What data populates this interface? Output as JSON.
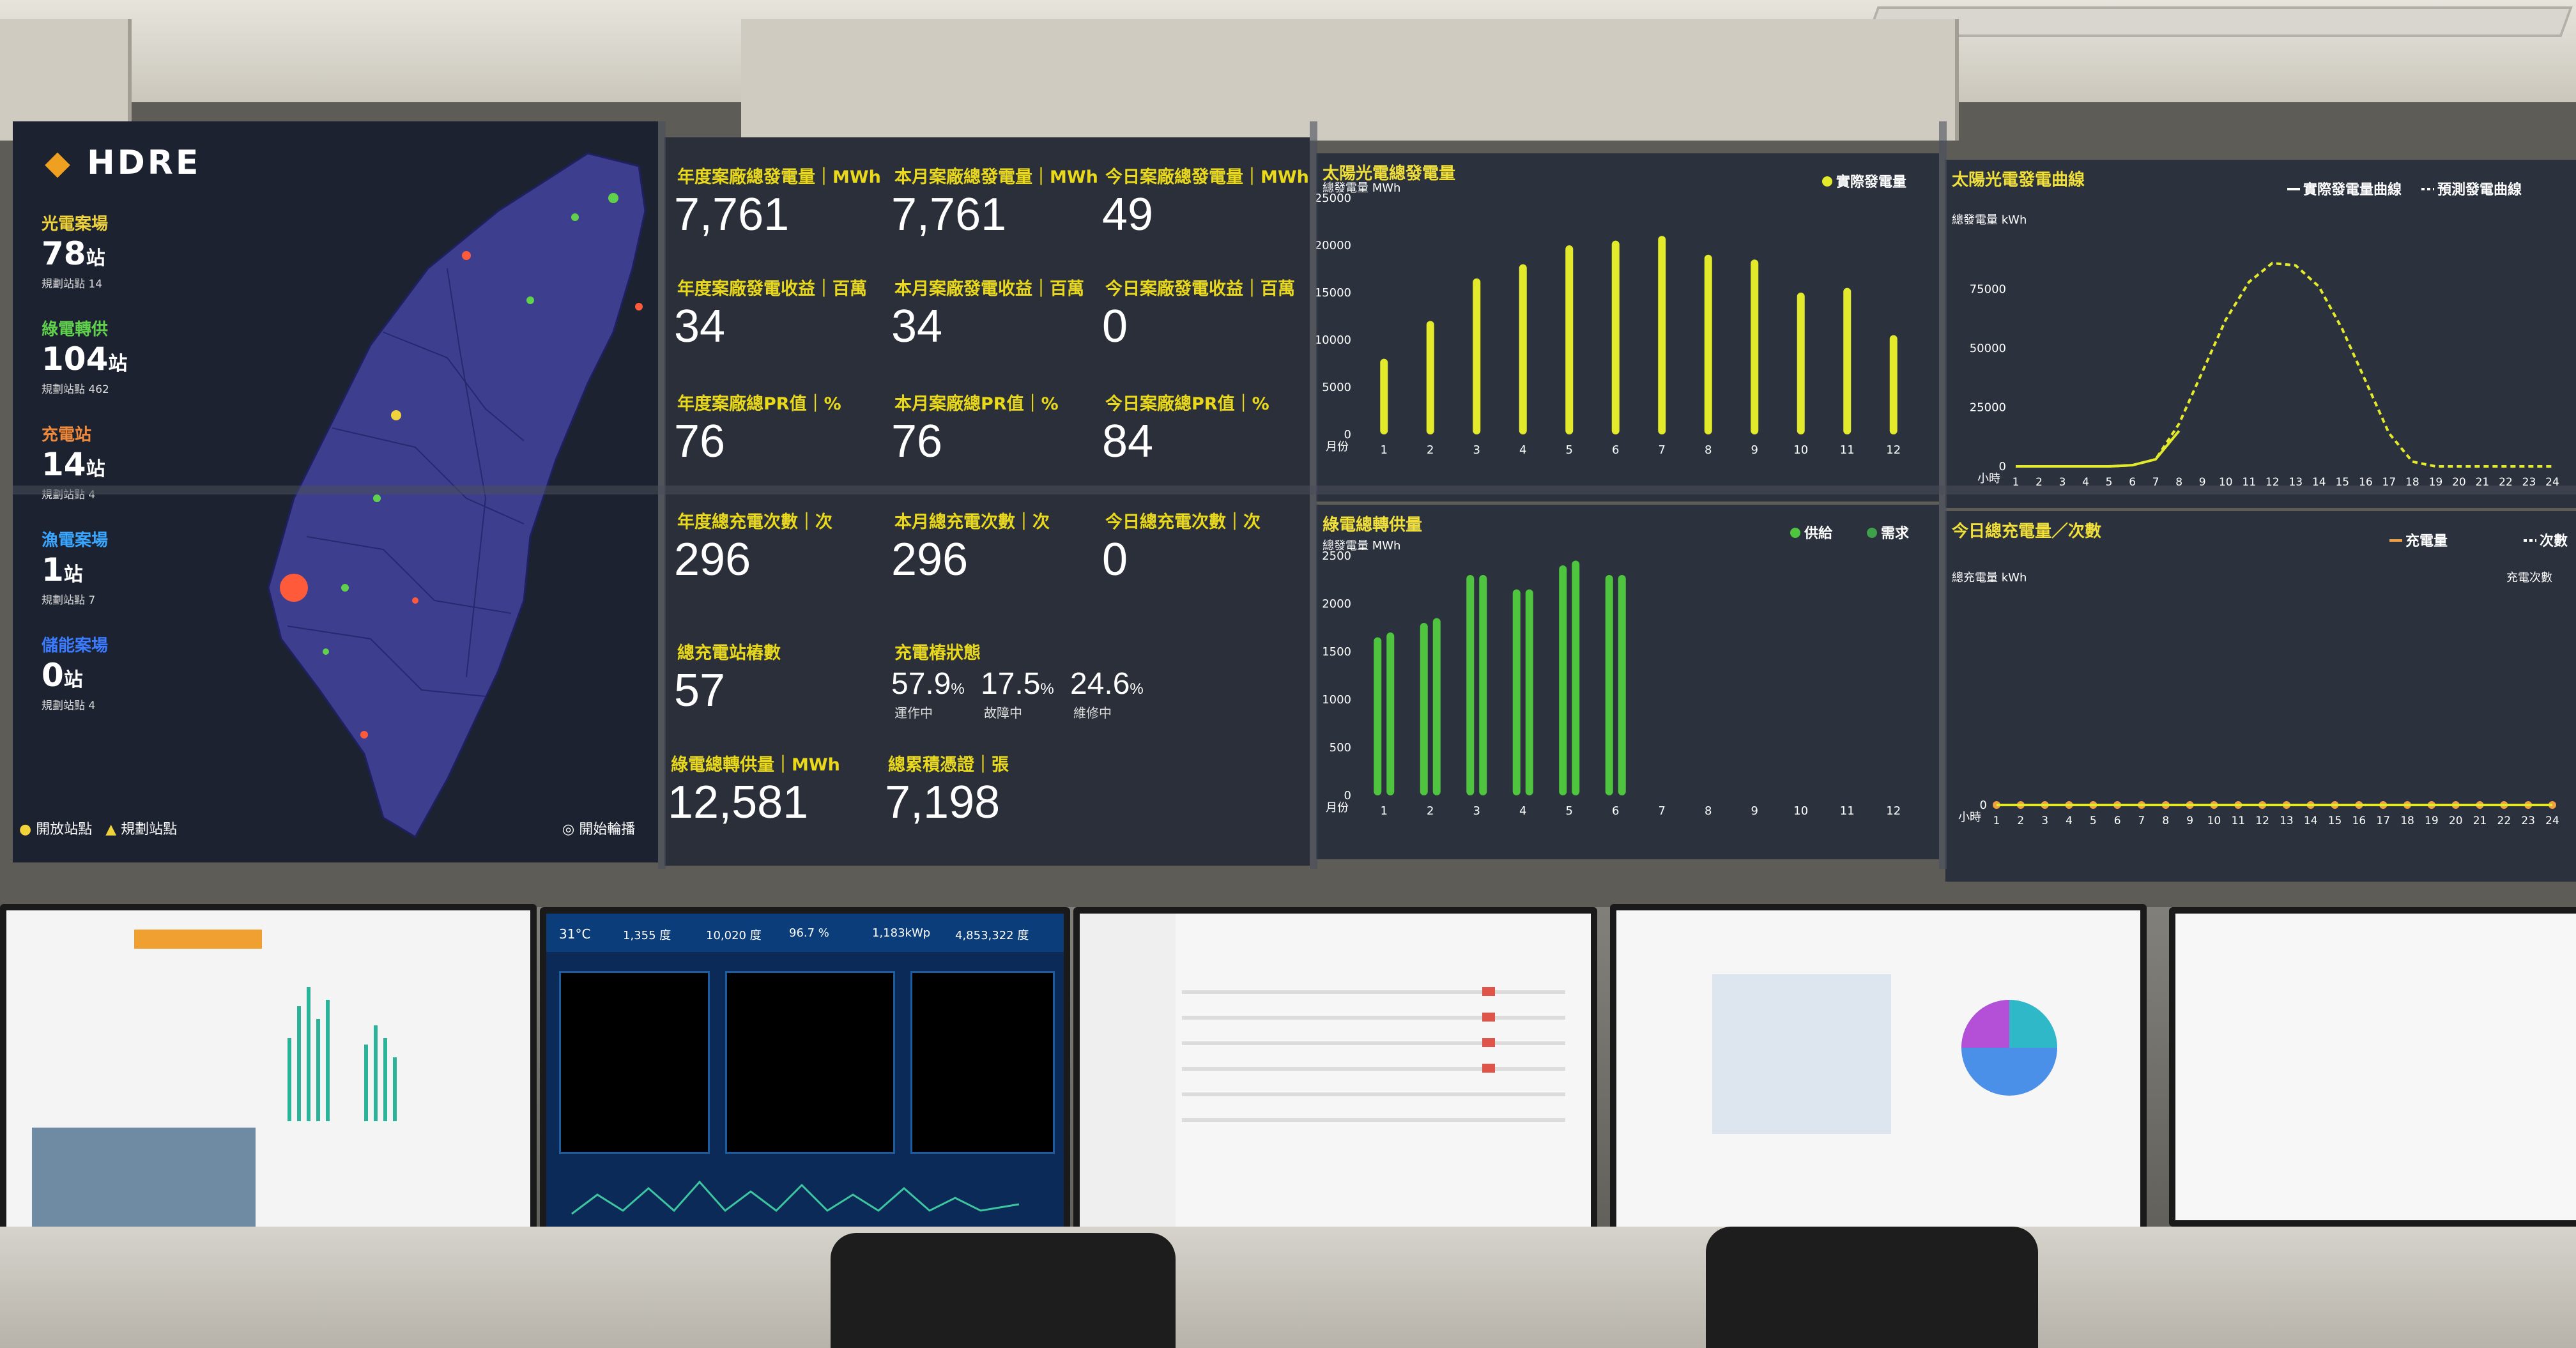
{
  "map": {
    "logo": "HDRE",
    "categories": [
      {
        "label": "光電案場",
        "count": "78",
        "unit": "站",
        "sub": "規劃站點 14",
        "color": "#f0d23a"
      },
      {
        "label": "綠電轉供",
        "count": "104",
        "unit": "站",
        "sub": "規劃站點 462",
        "color": "#5fd14c"
      },
      {
        "label": "充電站",
        "count": "14",
        "unit": "站",
        "sub": "規劃站點 4",
        "color": "#f08a3a"
      },
      {
        "label": "漁電案場",
        "count": "1",
        "unit": "站",
        "sub": "規劃站點 7",
        "color": "#39a7ff"
      },
      {
        "label": "儲能案場",
        "count": "0",
        "unit": "站",
        "sub": "規劃站點 4",
        "color": "#3b7bff"
      }
    ],
    "legend_open": "開放站點",
    "legend_plan": "規劃站點",
    "legend_rotate": "開始輪播"
  },
  "kpi": {
    "rows": [
      [
        {
          "label": "年度案廠總發電量｜MWh",
          "value": "7,761"
        },
        {
          "label": "本月案廠總發電量｜MWh",
          "value": "7,761"
        },
        {
          "label": "今日案廠總發電量｜MWh",
          "value": "49"
        }
      ],
      [
        {
          "label": "年度案廠發電收益｜百萬",
          "value": "34"
        },
        {
          "label": "本月案廠發電收益｜百萬",
          "value": "34"
        },
        {
          "label": "今日案廠發電收益｜百萬",
          "value": "0"
        }
      ],
      [
        {
          "label": "年度案廠總PR值｜%",
          "value": "76"
        },
        {
          "label": "本月案廠總PR值｜%",
          "value": "76"
        },
        {
          "label": "今日案廠總PR值｜%",
          "value": "84"
        }
      ],
      [
        {
          "label": "年度總充電次數｜次",
          "value": "296"
        },
        {
          "label": "本月總充電次數｜次",
          "value": "296"
        },
        {
          "label": "今日總充電次數｜次",
          "value": "0"
        }
      ]
    ],
    "pile_count_label": "總充電站樁數",
    "pile_count_value": "57",
    "pile_status_label": "充電樁狀態",
    "pile_status": [
      {
        "value": "57.9",
        "unit": "%",
        "label": "運作中"
      },
      {
        "value": "17.5",
        "unit": "%",
        "label": "故障中"
      },
      {
        "value": "24.6",
        "unit": "%",
        "label": "維修中"
      }
    ],
    "green_supply_label": "綠電總轉供量｜MWh",
    "green_supply_value": "12,581",
    "cert_label": "總累積憑證｜張",
    "cert_value": "7,198"
  },
  "chart_data": [
    {
      "type": "bar",
      "title": "太陽光電總發電量",
      "ylabel": "總發電量 MWh",
      "xlabel": "月份",
      "categories": [
        "1",
        "2",
        "3",
        "4",
        "5",
        "6",
        "7",
        "8",
        "9",
        "10",
        "11",
        "12"
      ],
      "series": [
        {
          "name": "實際發電量",
          "values": [
            8000,
            12000,
            16500,
            18000,
            20000,
            20500,
            21000,
            19000,
            18500,
            15000,
            15500,
            10500
          ]
        }
      ],
      "ylim": [
        0,
        25000
      ],
      "yticks": [
        "25000",
        "20000",
        "15000",
        "10000",
        "5000",
        "0"
      ],
      "color": "#e3ea2c"
    },
    {
      "type": "line",
      "title": "太陽光電發電曲線",
      "ylabel": "總發電量 kWh",
      "xlabel": "小時",
      "x": [
        "1",
        "2",
        "3",
        "4",
        "5",
        "6",
        "7",
        "8",
        "9",
        "10",
        "11",
        "12",
        "13",
        "14",
        "15",
        "16",
        "17",
        "18",
        "19",
        "20",
        "21",
        "22",
        "23",
        "24"
      ],
      "series": [
        {
          "name": "實際發電量曲線",
          "values": [
            0,
            0,
            0,
            0,
            0,
            500,
            3000,
            15000,
            null,
            null,
            null,
            null,
            null,
            null,
            null,
            null,
            null,
            null,
            null,
            null,
            null,
            null,
            null,
            null
          ]
        },
        {
          "name": "預測發電曲線",
          "values": [
            0,
            0,
            0,
            0,
            0,
            500,
            3000,
            18000,
            40000,
            62000,
            78000,
            86000,
            85000,
            76000,
            58000,
            36000,
            14000,
            2000,
            0,
            0,
            0,
            0,
            0,
            0
          ]
        }
      ],
      "ylim": [
        0,
        100000
      ],
      "yticks": [
        "75000",
        "50000",
        "25000",
        "0"
      ],
      "color": "#e3ea2c"
    },
    {
      "type": "bar",
      "title": "綠電總轉供量",
      "ylabel": "總發電量 MWh",
      "xlabel": "月份",
      "categories": [
        "1",
        "2",
        "3",
        "4",
        "5",
        "6",
        "7",
        "8",
        "9",
        "10",
        "11",
        "12"
      ],
      "series": [
        {
          "name": "供給",
          "values": [
            1650,
            1800,
            2300,
            2150,
            2400,
            2300,
            null,
            null,
            null,
            null,
            null,
            null
          ]
        },
        {
          "name": "需求",
          "values": [
            1700,
            1850,
            2300,
            2150,
            2450,
            2300,
            null,
            null,
            null,
            null,
            null,
            null
          ]
        }
      ],
      "ylim": [
        0,
        2500
      ],
      "yticks": [
        "2500",
        "2000",
        "1500",
        "1000",
        "500",
        "0"
      ],
      "color": "#4ec43f"
    },
    {
      "type": "line",
      "title": "今日總充電量／次數",
      "ylabel": "總充電量 kWh",
      "y2label": "充電次數",
      "xlabel": "小時",
      "x": [
        "1",
        "2",
        "3",
        "4",
        "5",
        "6",
        "7",
        "8",
        "9",
        "10",
        "11",
        "12",
        "13",
        "14",
        "15",
        "16",
        "17",
        "18",
        "19",
        "20",
        "21",
        "22",
        "23",
        "24"
      ],
      "series": [
        {
          "name": "充電量",
          "values": [
            0,
            0,
            0,
            0,
            0,
            0,
            0,
            0,
            0,
            0,
            0,
            0,
            0,
            0,
            0,
            0,
            0,
            0,
            0,
            0,
            0,
            0,
            0,
            0
          ]
        },
        {
          "name": "次數",
          "values": [
            0,
            0,
            0,
            0,
            0,
            0,
            0,
            0,
            0,
            0,
            0,
            0,
            0,
            0,
            0,
            0,
            0,
            0,
            0,
            0,
            0,
            0,
            0,
            0
          ]
        }
      ],
      "yticks": [
        "0"
      ],
      "color": "#f0a040"
    }
  ],
  "monitor2": {
    "temp": "31°C",
    "stats": [
      "1,355 度",
      "10,020 度",
      "96.7 %",
      "1,183kWp",
      "4,853,322 度"
    ]
  }
}
